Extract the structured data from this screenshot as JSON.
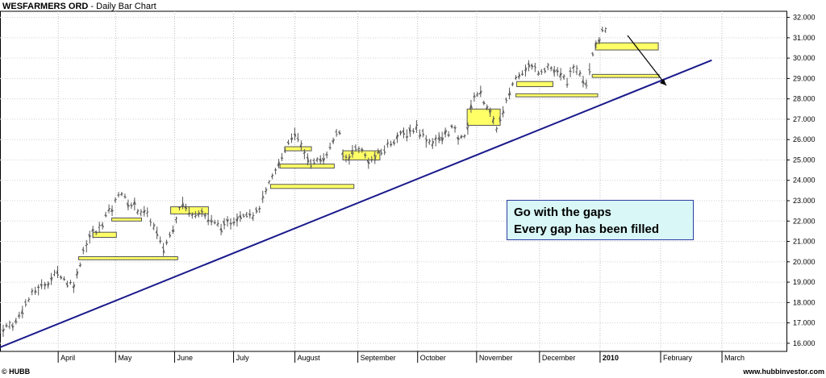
{
  "chart_data": {
    "type": "bar",
    "title_main": "WESFARMERS ORD",
    "title_sep": " - ",
    "title_sub": "Daily Bar Chart",
    "y_ticks": [
      "16.000",
      "17.000",
      "18.000",
      "19.000",
      "20.000",
      "21.000",
      "22.000",
      "23.000",
      "24.000",
      "25.000",
      "26.000",
      "27.000",
      "28.000",
      "29.000",
      "30.000",
      "31.000",
      "32.000"
    ],
    "ylim": [
      15.6,
      32.3
    ],
    "x_ticks": [
      "April",
      "May",
      "June",
      "July",
      "August",
      "September",
      "October",
      "November",
      "December",
      "2010",
      "February",
      "March"
    ],
    "annotation": [
      "Go with the gaps",
      "Every gap has been filled"
    ],
    "footer_left": "© HUBB",
    "footer_right": "www.hubbinvestor.com",
    "trendline": {
      "start_price": 15.8,
      "end_price": 29.9,
      "color": "#1a1a8c"
    },
    "gap_boxes": [
      {
        "t": 0.1,
        "t2": 0.226,
        "lo": 20.1,
        "hi": 20.25
      },
      {
        "t": 0.118,
        "t2": 0.148,
        "lo": 21.2,
        "hi": 21.45
      },
      {
        "t": 0.142,
        "t2": 0.18,
        "lo": 22.0,
        "hi": 22.15
      },
      {
        "t": 0.217,
        "t2": 0.265,
        "lo": 22.35,
        "hi": 22.7
      },
      {
        "t": 0.344,
        "t2": 0.45,
        "lo": 23.6,
        "hi": 23.8
      },
      {
        "t": 0.356,
        "t2": 0.425,
        "lo": 24.6,
        "hi": 24.8
      },
      {
        "t": 0.362,
        "t2": 0.396,
        "lo": 25.45,
        "hi": 25.65
      },
      {
        "t": 0.436,
        "t2": 0.483,
        "lo": 25.0,
        "hi": 25.45
      },
      {
        "t": 0.594,
        "t2": 0.636,
        "lo": 26.7,
        "hi": 27.5
      },
      {
        "t": 0.656,
        "t2": 0.76,
        "lo": 28.1,
        "hi": 28.25
      },
      {
        "t": 0.657,
        "t2": 0.703,
        "lo": 28.6,
        "hi": 28.85
      },
      {
        "t": 0.753,
        "t2": 0.838,
        "lo": 29.05,
        "hi": 29.2
      },
      {
        "t": 0.757,
        "t2": 0.837,
        "lo": 30.4,
        "hi": 30.75
      }
    ],
    "price_path": [
      [
        0.0,
        16.7
      ],
      [
        0.02,
        17.0
      ],
      [
        0.03,
        17.8
      ],
      [
        0.045,
        18.6
      ],
      [
        0.06,
        19.0
      ],
      [
        0.075,
        19.5
      ],
      [
        0.085,
        19.0
      ],
      [
        0.095,
        18.9
      ],
      [
        0.105,
        20.5
      ],
      [
        0.115,
        21.3
      ],
      [
        0.125,
        21.5
      ],
      [
        0.135,
        22.3
      ],
      [
        0.145,
        22.7
      ],
      [
        0.152,
        23.6
      ],
      [
        0.16,
        23.0
      ],
      [
        0.175,
        22.6
      ],
      [
        0.19,
        22.2
      ],
      [
        0.2,
        21.3
      ],
      [
        0.207,
        20.6
      ],
      [
        0.215,
        21.2
      ],
      [
        0.225,
        22.3
      ],
      [
        0.23,
        23.0
      ],
      [
        0.24,
        22.4
      ],
      [
        0.255,
        22.5
      ],
      [
        0.27,
        21.9
      ],
      [
        0.285,
        21.7
      ],
      [
        0.3,
        22.2
      ],
      [
        0.315,
        22.5
      ],
      [
        0.325,
        22.3
      ],
      [
        0.335,
        23.1
      ],
      [
        0.345,
        24.0
      ],
      [
        0.355,
        24.8
      ],
      [
        0.365,
        25.8
      ],
      [
        0.372,
        26.3
      ],
      [
        0.38,
        25.9
      ],
      [
        0.39,
        25.1
      ],
      [
        0.4,
        24.8
      ],
      [
        0.41,
        25.1
      ],
      [
        0.42,
        25.6
      ],
      [
        0.43,
        26.6
      ],
      [
        0.437,
        25.0
      ],
      [
        0.445,
        25.2
      ],
      [
        0.455,
        25.7
      ],
      [
        0.47,
        24.9
      ],
      [
        0.485,
        25.4
      ],
      [
        0.5,
        26.0
      ],
      [
        0.515,
        26.3
      ],
      [
        0.53,
        26.6
      ],
      [
        0.545,
        25.9
      ],
      [
        0.56,
        26.0
      ],
      [
        0.575,
        26.6
      ],
      [
        0.585,
        25.9
      ],
      [
        0.595,
        26.6
      ],
      [
        0.602,
        28.2
      ],
      [
        0.61,
        28.3
      ],
      [
        0.62,
        27.6
      ],
      [
        0.63,
        26.5
      ],
      [
        0.64,
        27.3
      ],
      [
        0.65,
        28.6
      ],
      [
        0.66,
        29.3
      ],
      [
        0.672,
        29.6
      ],
      [
        0.685,
        29.4
      ],
      [
        0.697,
        29.6
      ],
      [
        0.71,
        29.2
      ],
      [
        0.72,
        28.9
      ],
      [
        0.735,
        29.6
      ],
      [
        0.745,
        28.7
      ],
      [
        0.755,
        30.6
      ],
      [
        0.762,
        31.0
      ],
      [
        0.77,
        31.5
      ]
    ]
  }
}
